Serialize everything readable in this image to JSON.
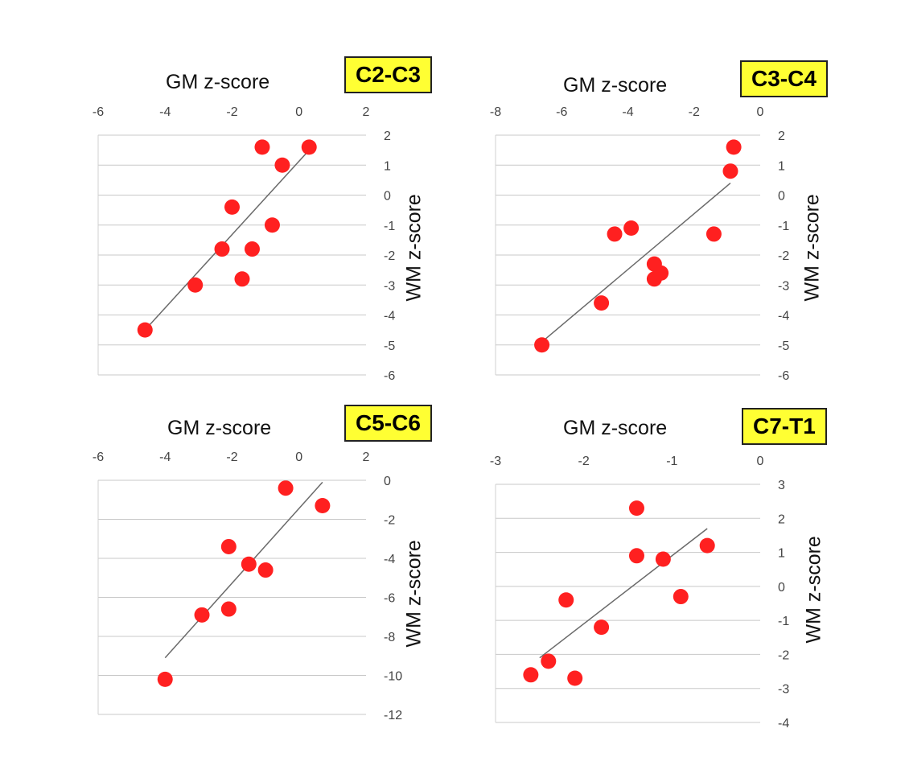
{
  "chart_data": [
    {
      "type": "scatter",
      "title": "C2-C3",
      "xlabel": "GM z-score",
      "ylabel": "WM z-score",
      "xlim": [
        -6,
        2
      ],
      "ylim": [
        -6,
        2
      ],
      "xticks": [
        "-6",
        "-4",
        "-2",
        "0",
        "2"
      ],
      "yticks": [
        "2",
        "1",
        "0",
        "-1",
        "-2",
        "-3",
        "-4",
        "-5",
        "-6"
      ],
      "x_axis_position": "top",
      "y_axis_position": "right",
      "grid": "horizontal",
      "point_color": "#ff2020",
      "points": [
        {
          "x": -4.6,
          "y": -4.5
        },
        {
          "x": -3.1,
          "y": -3.0
        },
        {
          "x": -2.3,
          "y": -1.8
        },
        {
          "x": -2.0,
          "y": -0.4
        },
        {
          "x": -1.7,
          "y": -2.8
        },
        {
          "x": -1.4,
          "y": -1.8
        },
        {
          "x": -1.1,
          "y": 1.6
        },
        {
          "x": -0.8,
          "y": -1.0
        },
        {
          "x": -0.5,
          "y": 1.0
        },
        {
          "x": 0.3,
          "y": 1.6
        }
      ],
      "trendline": {
        "x": [
          -4.6,
          0.3
        ],
        "y": [
          -4.5,
          1.5
        ]
      }
    },
    {
      "type": "scatter",
      "title": "C3-C4",
      "xlabel": "GM z-score",
      "ylabel": "WM z-score",
      "xlim": [
        -8,
        0
      ],
      "ylim": [
        -6,
        2
      ],
      "xticks": [
        "-8",
        "-6",
        "-4",
        "-2",
        "0"
      ],
      "yticks": [
        "2",
        "1",
        "0",
        "-1",
        "-2",
        "-3",
        "-4",
        "-5",
        "-6"
      ],
      "x_axis_position": "top",
      "y_axis_position": "right",
      "grid": "horizontal",
      "point_color": "#ff2020",
      "points": [
        {
          "x": -6.6,
          "y": -5.0
        },
        {
          "x": -4.8,
          "y": -3.6
        },
        {
          "x": -4.4,
          "y": -1.3
        },
        {
          "x": -3.9,
          "y": -1.1
        },
        {
          "x": -3.2,
          "y": -2.3
        },
        {
          "x": -3.2,
          "y": -2.8
        },
        {
          "x": -3.0,
          "y": -2.6
        },
        {
          "x": -1.4,
          "y": -1.3
        },
        {
          "x": -0.9,
          "y": 0.8
        },
        {
          "x": -0.8,
          "y": 1.6
        }
      ],
      "trendline": {
        "x": [
          -6.6,
          -0.9
        ],
        "y": [
          -4.9,
          0.4
        ]
      }
    },
    {
      "type": "scatter",
      "title": "C5-C6",
      "xlabel": "GM z-score",
      "ylabel": "WM z-score",
      "xlim": [
        -6,
        2
      ],
      "ylim": [
        -12,
        0
      ],
      "xticks": [
        "-6",
        "-4",
        "-2",
        "0",
        "2"
      ],
      "yticks": [
        "0",
        "-2",
        "-4",
        "-6",
        "-8",
        "-10",
        "-12"
      ],
      "x_axis_position": "top",
      "y_axis_position": "right",
      "grid": "horizontal",
      "point_color": "#ff2020",
      "points": [
        {
          "x": -4.0,
          "y": -10.2
        },
        {
          "x": -2.9,
          "y": -6.9
        },
        {
          "x": -2.1,
          "y": -6.6
        },
        {
          "x": -2.1,
          "y": -3.4
        },
        {
          "x": -1.5,
          "y": -4.3
        },
        {
          "x": -1.0,
          "y": -4.6
        },
        {
          "x": -0.4,
          "y": -0.4
        },
        {
          "x": 0.7,
          "y": -1.3
        }
      ],
      "trendline": {
        "x": [
          -4.0,
          0.7
        ],
        "y": [
          -9.1,
          -0.1
        ]
      }
    },
    {
      "type": "scatter",
      "title": "C7-T1",
      "xlabel": "GM z-score",
      "ylabel": "WM z-score",
      "xlim": [
        -3,
        0
      ],
      "ylim": [
        -4,
        3
      ],
      "xticks": [
        "-3",
        "-2",
        "-1",
        "0"
      ],
      "yticks": [
        "3",
        "2",
        "1",
        "0",
        "-1",
        "-2",
        "-3",
        "-4"
      ],
      "x_axis_position": "top",
      "y_axis_position": "right",
      "grid": "horizontal",
      "point_color": "#ff2020",
      "points": [
        {
          "x": -2.6,
          "y": -2.6
        },
        {
          "x": -2.4,
          "y": -2.2
        },
        {
          "x": -2.2,
          "y": -0.4
        },
        {
          "x": -2.1,
          "y": -2.7
        },
        {
          "x": -1.8,
          "y": -1.2
        },
        {
          "x": -1.4,
          "y": 2.3
        },
        {
          "x": -1.4,
          "y": 0.9
        },
        {
          "x": -1.1,
          "y": 0.8
        },
        {
          "x": -0.9,
          "y": -0.3
        },
        {
          "x": -0.6,
          "y": 1.2
        }
      ],
      "trendline": {
        "x": [
          -2.5,
          -0.6
        ],
        "y": [
          -2.1,
          1.7
        ]
      }
    }
  ]
}
